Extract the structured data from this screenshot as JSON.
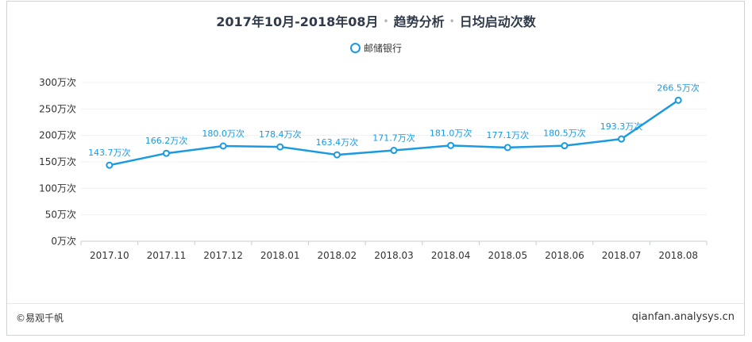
{
  "header": {
    "title_part1": "2017年10月-2018年08月",
    "separator": "•",
    "title_part2": "趋势分析",
    "title_part3": "日均启动次数"
  },
  "footer": {
    "left": "©易观千帆",
    "right": "qianfan.analysys.cn"
  },
  "colors": {
    "line": "#1a9ae0",
    "label": "#1a9ae0",
    "grid": "#eef0f3",
    "axis_text": "#333333"
  },
  "chart_data": {
    "type": "line",
    "title": "2017年10月-2018年08月 • 趋势分析 • 日均启动次数",
    "x": [
      "2017.10",
      "2017.11",
      "2017.12",
      "2018.01",
      "2018.02",
      "2018.03",
      "2018.04",
      "2018.05",
      "2018.06",
      "2018.07",
      "2018.08"
    ],
    "series": [
      {
        "name": "邮储银行",
        "values": [
          143.7,
          166.2,
          180.0,
          178.4,
          163.4,
          171.7,
          181.0,
          177.1,
          180.5,
          193.3,
          266.5
        ],
        "labels": [
          "143.7万次",
          "166.2万次",
          "180.0万次",
          "178.4万次",
          "163.4万次",
          "171.7万次",
          "181.0万次",
          "177.1万次",
          "180.5万次",
          "193.3万次",
          "266.5万次"
        ]
      }
    ],
    "ylim": [
      0,
      300
    ],
    "yticks": [
      0,
      50,
      100,
      150,
      200,
      250,
      300
    ],
    "ytick_labels": [
      "0万次",
      "50万次",
      "100万次",
      "150万次",
      "200万次",
      "250万次",
      "300万次"
    ],
    "unit": "万次",
    "grid": true,
    "legend_position": "top-center"
  }
}
